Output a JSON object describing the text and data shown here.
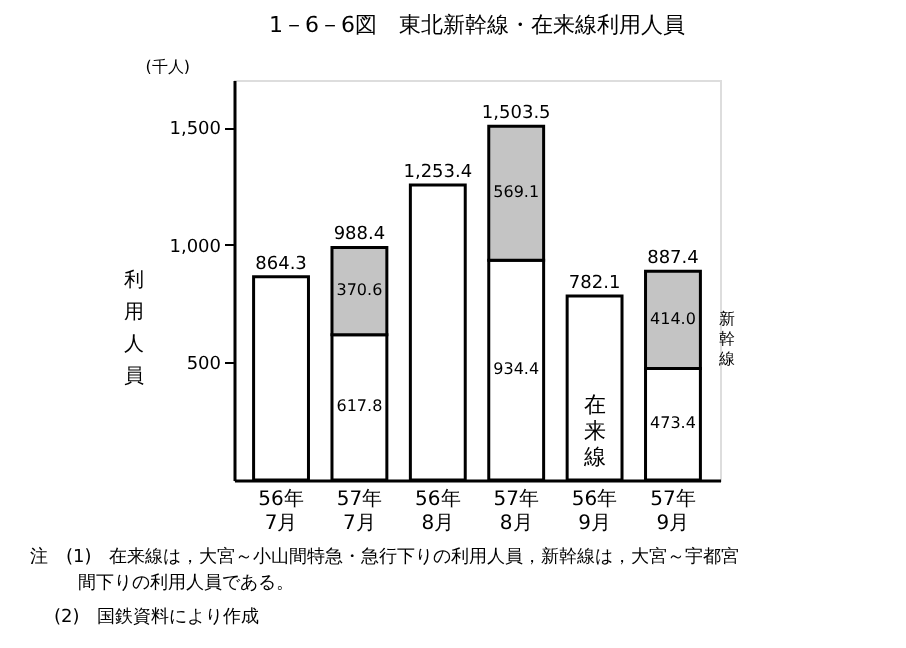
{
  "chart_data": {
    "type": "bar",
    "title": "1－6－6図　東北新幹線・在来線利用人員",
    "ylabel": "利用人員",
    "categories": [
      "56年 7月",
      "57年 7月",
      "56年 8月",
      "57年 8月",
      "56年 9月",
      "57年 9月"
    ],
    "stacked": true,
    "series": [
      {
        "name": "在来線",
        "color": "#ffffff",
        "values": [
          864.3,
          617.8,
          1253.4,
          934.4,
          782.1,
          473.4
        ],
        "value_labels": [
          null,
          "617.8",
          null,
          "934.4",
          null,
          "473.4"
        ]
      },
      {
        "name": "新幹線",
        "color": "#c4c4c4",
        "values": [
          null,
          370.6,
          null,
          569.1,
          null,
          414.0
        ],
        "value_labels": [
          null,
          "370.6",
          null,
          "569.1",
          null,
          "414.0"
        ]
      }
    ],
    "totals": [
      "864.3",
      "988.4",
      "1,253.4",
      "1,503.5",
      "782.1",
      "887.4"
    ],
    "ylim": [
      0,
      1700
    ],
    "yticks": [
      500,
      {
        "value": 1000,
        "label": "1,000"
      },
      {
        "value": 1500,
        "label": "1,500"
      }
    ],
    "grid": false,
    "annotations": [
      "(千人)",
      "注　(1)　在来線は，大宮～小山間特急・急行下りの利用人員，新幹線は，大宮～宇都宮",
      "間下りの利用人員である。",
      "(2)　国鉄資料により作成"
    ]
  }
}
